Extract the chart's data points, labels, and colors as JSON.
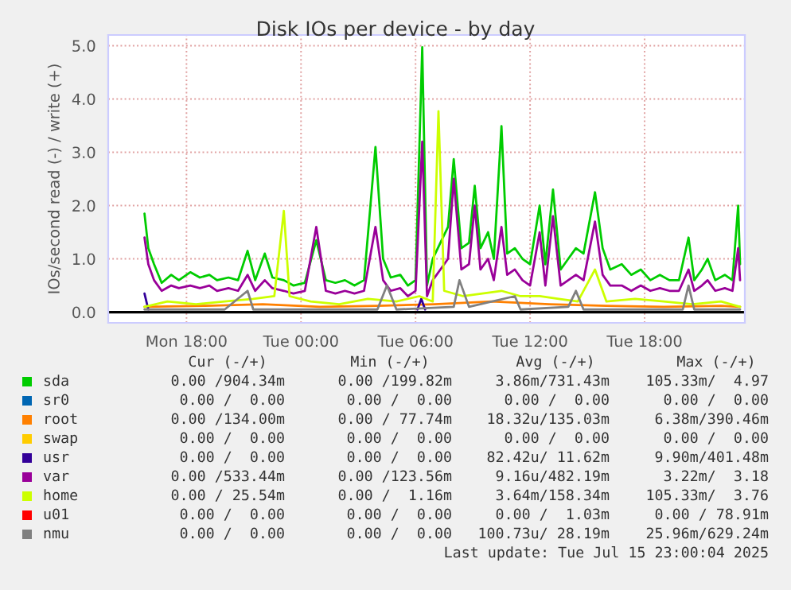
{
  "chart_data": {
    "type": "line",
    "title": "Disk IOs per device - by day",
    "ylabel": "IOs/second read (-) / write (+)",
    "xlim": [
      "2025-07-14T13:54",
      "2025-07-15T23:15"
    ],
    "ylim": [
      -0.2,
      5.2
    ],
    "xticks": [
      {
        "value": "2025-07-14T18:00",
        "label": "Mon 18:00"
      },
      {
        "value": "2025-07-15T00:00",
        "label": "Tue 00:00"
      },
      {
        "value": "2025-07-15T06:00",
        "label": "Tue 06:00"
      },
      {
        "value": "2025-07-15T12:00",
        "label": "Tue 12:00"
      },
      {
        "value": "2025-07-15T18:00",
        "label": "Tue 18:00"
      }
    ],
    "yticks": [
      {
        "value": 0,
        "label": "0.0"
      },
      {
        "value": 1,
        "label": "1.0"
      },
      {
        "value": 2,
        "label": "2.0"
      },
      {
        "value": 3,
        "label": "3.0"
      },
      {
        "value": 4,
        "label": "4.0"
      },
      {
        "value": 5,
        "label": "5.0"
      }
    ],
    "grid": true,
    "legend": "bottom",
    "marker": "none",
    "line_style": "solid",
    "ref_lines": [
      {
        "axis": "y",
        "value": 0,
        "color": "#000000"
      }
    ],
    "series": [
      {
        "name": "sda",
        "color": "#00cc00",
        "x": [
          "2025-07-14T15:48",
          "2025-07-14T16:00",
          "2025-07-14T16:18",
          "2025-07-14T16:42",
          "2025-07-14T17:12",
          "2025-07-14T17:36",
          "2025-07-14T18:12",
          "2025-07-14T18:42",
          "2025-07-14T19:12",
          "2025-07-14T19:36",
          "2025-07-14T20:12",
          "2025-07-14T20:42",
          "2025-07-14T21:12",
          "2025-07-14T21:36",
          "2025-07-14T22:06",
          "2025-07-14T22:30",
          "2025-07-14T23:06",
          "2025-07-14T23:36",
          "2025-07-15T00:12",
          "2025-07-15T00:48",
          "2025-07-15T01:18",
          "2025-07-15T01:48",
          "2025-07-15T02:18",
          "2025-07-15T02:48",
          "2025-07-15T03:18",
          "2025-07-15T03:54",
          "2025-07-15T04:18",
          "2025-07-15T04:42",
          "2025-07-15T05:12",
          "2025-07-15T05:36",
          "2025-07-15T06:00",
          "2025-07-15T06:21",
          "2025-07-15T06:36",
          "2025-07-15T06:54",
          "2025-07-15T07:18",
          "2025-07-15T07:42",
          "2025-07-15T08:00",
          "2025-07-15T08:24",
          "2025-07-15T08:48",
          "2025-07-15T09:06",
          "2025-07-15T09:24",
          "2025-07-15T09:48",
          "2025-07-15T10:06",
          "2025-07-15T10:30",
          "2025-07-15T10:48",
          "2025-07-15T11:12",
          "2025-07-15T11:36",
          "2025-07-15T12:00",
          "2025-07-15T12:30",
          "2025-07-15T12:48",
          "2025-07-15T13:12",
          "2025-07-15T13:36",
          "2025-07-15T14:00",
          "2025-07-15T14:24",
          "2025-07-15T14:48",
          "2025-07-15T15:24",
          "2025-07-15T15:48",
          "2025-07-15T16:12",
          "2025-07-15T16:48",
          "2025-07-15T17:18",
          "2025-07-15T17:48",
          "2025-07-15T18:18",
          "2025-07-15T18:48",
          "2025-07-15T19:18",
          "2025-07-15T19:48",
          "2025-07-15T20:18",
          "2025-07-15T20:36",
          "2025-07-15T21:00",
          "2025-07-15T21:18",
          "2025-07-15T21:42",
          "2025-07-15T22:12",
          "2025-07-15T22:36",
          "2025-07-15T22:54",
          "2025-07-15T23:00"
        ],
        "values": [
          1.85,
          1.2,
          0.9,
          0.55,
          0.7,
          0.6,
          0.75,
          0.65,
          0.7,
          0.6,
          0.65,
          0.6,
          1.15,
          0.6,
          1.1,
          0.65,
          0.6,
          0.5,
          0.55,
          1.35,
          0.6,
          0.55,
          0.6,
          0.5,
          0.6,
          3.1,
          1.0,
          0.65,
          0.7,
          0.5,
          0.6,
          4.97,
          0.5,
          1.0,
          1.3,
          1.6,
          2.87,
          1.2,
          1.3,
          2.37,
          1.2,
          1.5,
          1.0,
          3.49,
          1.1,
          1.2,
          1.0,
          0.9,
          2.0,
          0.9,
          2.3,
          0.8,
          1.0,
          1.2,
          1.1,
          2.25,
          1.2,
          0.8,
          0.9,
          0.7,
          0.8,
          0.6,
          0.7,
          0.6,
          0.6,
          1.4,
          0.6,
          0.8,
          1.0,
          0.6,
          0.7,
          0.6,
          2.0,
          0.9
        ]
      },
      {
        "name": "sr0",
        "color": "#0066b3"
      },
      {
        "name": "root",
        "color": "#ff8000",
        "x": [
          "2025-07-14T15:48",
          "2025-07-14T19:00",
          "2025-07-14T22:00",
          "2025-07-15T01:00",
          "2025-07-15T04:00",
          "2025-07-15T07:00",
          "2025-07-15T10:00",
          "2025-07-15T13:00",
          "2025-07-15T16:00",
          "2025-07-15T19:00",
          "2025-07-15T22:00",
          "2025-07-15T23:00"
        ],
        "values": [
          0.1,
          0.12,
          0.15,
          0.1,
          0.12,
          0.15,
          0.2,
          0.15,
          0.12,
          0.1,
          0.12,
          0.1
        ]
      },
      {
        "name": "swap",
        "color": "#ffcc00"
      },
      {
        "name": "usr",
        "color": "#330099",
        "x": [
          "2025-07-14T15:48",
          "2025-07-14T16:00",
          "2025-07-15T00:00",
          "2025-07-15T06:06",
          "2025-07-15T06:18",
          "2025-07-15T06:30"
        ],
        "values": [
          0.35,
          0.05,
          null,
          0.05,
          0.25,
          0.05
        ]
      },
      {
        "name": "var",
        "color": "#990099",
        "x": [
          "2025-07-14T15:48",
          "2025-07-14T16:00",
          "2025-07-14T16:18",
          "2025-07-14T16:42",
          "2025-07-14T17:12",
          "2025-07-14T17:36",
          "2025-07-14T18:12",
          "2025-07-14T18:42",
          "2025-07-14T19:12",
          "2025-07-14T19:36",
          "2025-07-14T20:12",
          "2025-07-14T20:42",
          "2025-07-14T21:12",
          "2025-07-14T21:36",
          "2025-07-14T22:06",
          "2025-07-14T22:30",
          "2025-07-14T23:06",
          "2025-07-14T23:36",
          "2025-07-15T00:12",
          "2025-07-15T00:48",
          "2025-07-15T01:18",
          "2025-07-15T01:48",
          "2025-07-15T02:18",
          "2025-07-15T02:48",
          "2025-07-15T03:18",
          "2025-07-15T03:54",
          "2025-07-15T04:18",
          "2025-07-15T04:42",
          "2025-07-15T05:12",
          "2025-07-15T05:36",
          "2025-07-15T06:00",
          "2025-07-15T06:21",
          "2025-07-15T06:36",
          "2025-07-15T06:54",
          "2025-07-15T07:18",
          "2025-07-15T07:42",
          "2025-07-15T08:00",
          "2025-07-15T08:24",
          "2025-07-15T08:48",
          "2025-07-15T09:06",
          "2025-07-15T09:24",
          "2025-07-15T09:48",
          "2025-07-15T10:06",
          "2025-07-15T10:30",
          "2025-07-15T10:48",
          "2025-07-15T11:12",
          "2025-07-15T11:36",
          "2025-07-15T12:00",
          "2025-07-15T12:30",
          "2025-07-15T12:48",
          "2025-07-15T13:12",
          "2025-07-15T13:36",
          "2025-07-15T14:00",
          "2025-07-15T14:24",
          "2025-07-15T14:48",
          "2025-07-15T15:24",
          "2025-07-15T15:48",
          "2025-07-15T16:12",
          "2025-07-15T16:48",
          "2025-07-15T17:18",
          "2025-07-15T17:48",
          "2025-07-15T18:18",
          "2025-07-15T18:48",
          "2025-07-15T19:18",
          "2025-07-15T19:48",
          "2025-07-15T20:18",
          "2025-07-15T20:36",
          "2025-07-15T21:00",
          "2025-07-15T21:18",
          "2025-07-15T21:42",
          "2025-07-15T22:12",
          "2025-07-15T22:36",
          "2025-07-15T22:54",
          "2025-07-15T23:00"
        ],
        "values": [
          1.4,
          0.9,
          0.6,
          0.4,
          0.5,
          0.45,
          0.5,
          0.45,
          0.5,
          0.4,
          0.45,
          0.4,
          0.7,
          0.4,
          0.6,
          0.45,
          0.4,
          0.35,
          0.4,
          1.6,
          0.4,
          0.35,
          0.4,
          0.35,
          0.4,
          1.6,
          0.6,
          0.4,
          0.45,
          0.3,
          0.4,
          3.2,
          0.3,
          0.6,
          0.8,
          1.0,
          2.5,
          0.8,
          0.9,
          2.0,
          0.8,
          1.0,
          0.6,
          1.6,
          0.7,
          0.8,
          0.6,
          0.5,
          1.5,
          0.5,
          1.8,
          0.5,
          0.6,
          0.7,
          0.6,
          1.7,
          0.7,
          0.5,
          0.5,
          0.4,
          0.5,
          0.4,
          0.45,
          0.4,
          0.4,
          0.8,
          0.4,
          0.5,
          0.6,
          0.4,
          0.45,
          0.4,
          1.2,
          0.6
        ]
      },
      {
        "name": "home",
        "color": "#ccff00",
        "x": [
          "2025-07-14T15:48",
          "2025-07-14T17:00",
          "2025-07-14T18:30",
          "2025-07-14T20:00",
          "2025-07-14T21:30",
          "2025-07-14T22:36",
          "2025-07-14T23:06",
          "2025-07-14T23:24",
          "2025-07-15T00:30",
          "2025-07-15T02:00",
          "2025-07-15T03:30",
          "2025-07-15T05:00",
          "2025-07-15T06:12",
          "2025-07-15T06:54",
          "2025-07-15T07:12",
          "2025-07-15T07:30",
          "2025-07-15T08:30",
          "2025-07-15T09:30",
          "2025-07-15T10:30",
          "2025-07-15T11:30",
          "2025-07-15T12:30",
          "2025-07-15T13:30",
          "2025-07-15T14:30",
          "2025-07-15T15:24",
          "2025-07-15T16:00",
          "2025-07-15T17:30",
          "2025-07-15T19:00",
          "2025-07-15T20:30",
          "2025-07-15T22:00",
          "2025-07-15T23:00"
        ],
        "values": [
          0.1,
          0.2,
          0.15,
          0.2,
          0.25,
          0.3,
          1.9,
          0.3,
          0.2,
          0.15,
          0.25,
          0.2,
          0.3,
          0.2,
          3.77,
          0.4,
          0.3,
          0.35,
          0.4,
          0.3,
          0.3,
          0.25,
          0.2,
          0.8,
          0.2,
          0.25,
          0.2,
          0.15,
          0.2,
          0.1
        ]
      },
      {
        "name": "u01",
        "color": "#ff0000"
      },
      {
        "name": "nmu",
        "color": "#808080",
        "x": [
          "2025-07-14T15:48",
          "2025-07-14T20:00",
          "2025-07-14T21:12",
          "2025-07-14T21:30",
          "2025-07-15T04:00",
          "2025-07-15T04:30",
          "2025-07-15T05:00",
          "2025-07-15T08:00",
          "2025-07-15T08:18",
          "2025-07-15T08:48",
          "2025-07-15T11:12",
          "2025-07-15T11:30",
          "2025-07-15T14:00",
          "2025-07-15T14:24",
          "2025-07-15T14:48",
          "2025-07-15T20:00",
          "2025-07-15T20:18",
          "2025-07-15T20:36",
          "2025-07-15T23:00"
        ],
        "values": [
          0.05,
          0.05,
          0.4,
          0.05,
          0.05,
          0.5,
          0.05,
          0.1,
          0.6,
          0.1,
          0.3,
          0.05,
          0.1,
          0.4,
          0.05,
          0.05,
          0.5,
          0.05,
          0.05
        ]
      }
    ],
    "annotations": [
      "Cur (-/+)",
      "Min (-/+)",
      "Avg (-/+)",
      "Max (-/+)",
      "0.00 /904.34m",
      "0.00 /199.82m",
      "3.86m/731.43m",
      "105.33m/  4.97",
      "0.00 /  0.00",
      "0.00 /  0.00",
      "0.00 /  0.00",
      "0.00 /  0.00",
      "0.00 /134.00m",
      "0.00 / 77.74m",
      "18.32u/135.03m",
      "6.38m/390.46m",
      "0.00 /  0.00",
      "0.00 /  0.00",
      "0.00 /  0.00",
      "0.00 /  0.00",
      "0.00 /  0.00",
      "0.00 /  0.00",
      "82.42u/ 11.62m",
      "9.90m/401.48m",
      "0.00 /533.44m",
      "0.00 /123.56m",
      "9.16u/482.19m",
      "3.22m/  3.18",
      "0.00 / 25.54m",
      "0.00 /  1.16m",
      "3.64m/158.34m",
      "105.33m/  3.76",
      "0.00 /  0.00",
      "0.00 /  0.00",
      "0.00 /  1.03m",
      "0.00 / 78.91m",
      "0.00 /  0.00",
      "0.00 /  0.00",
      "100.73u/ 28.19m",
      "25.96m/629.24m",
      "Last update: Tue Jul 15 23:00:04 2025"
    ]
  }
}
